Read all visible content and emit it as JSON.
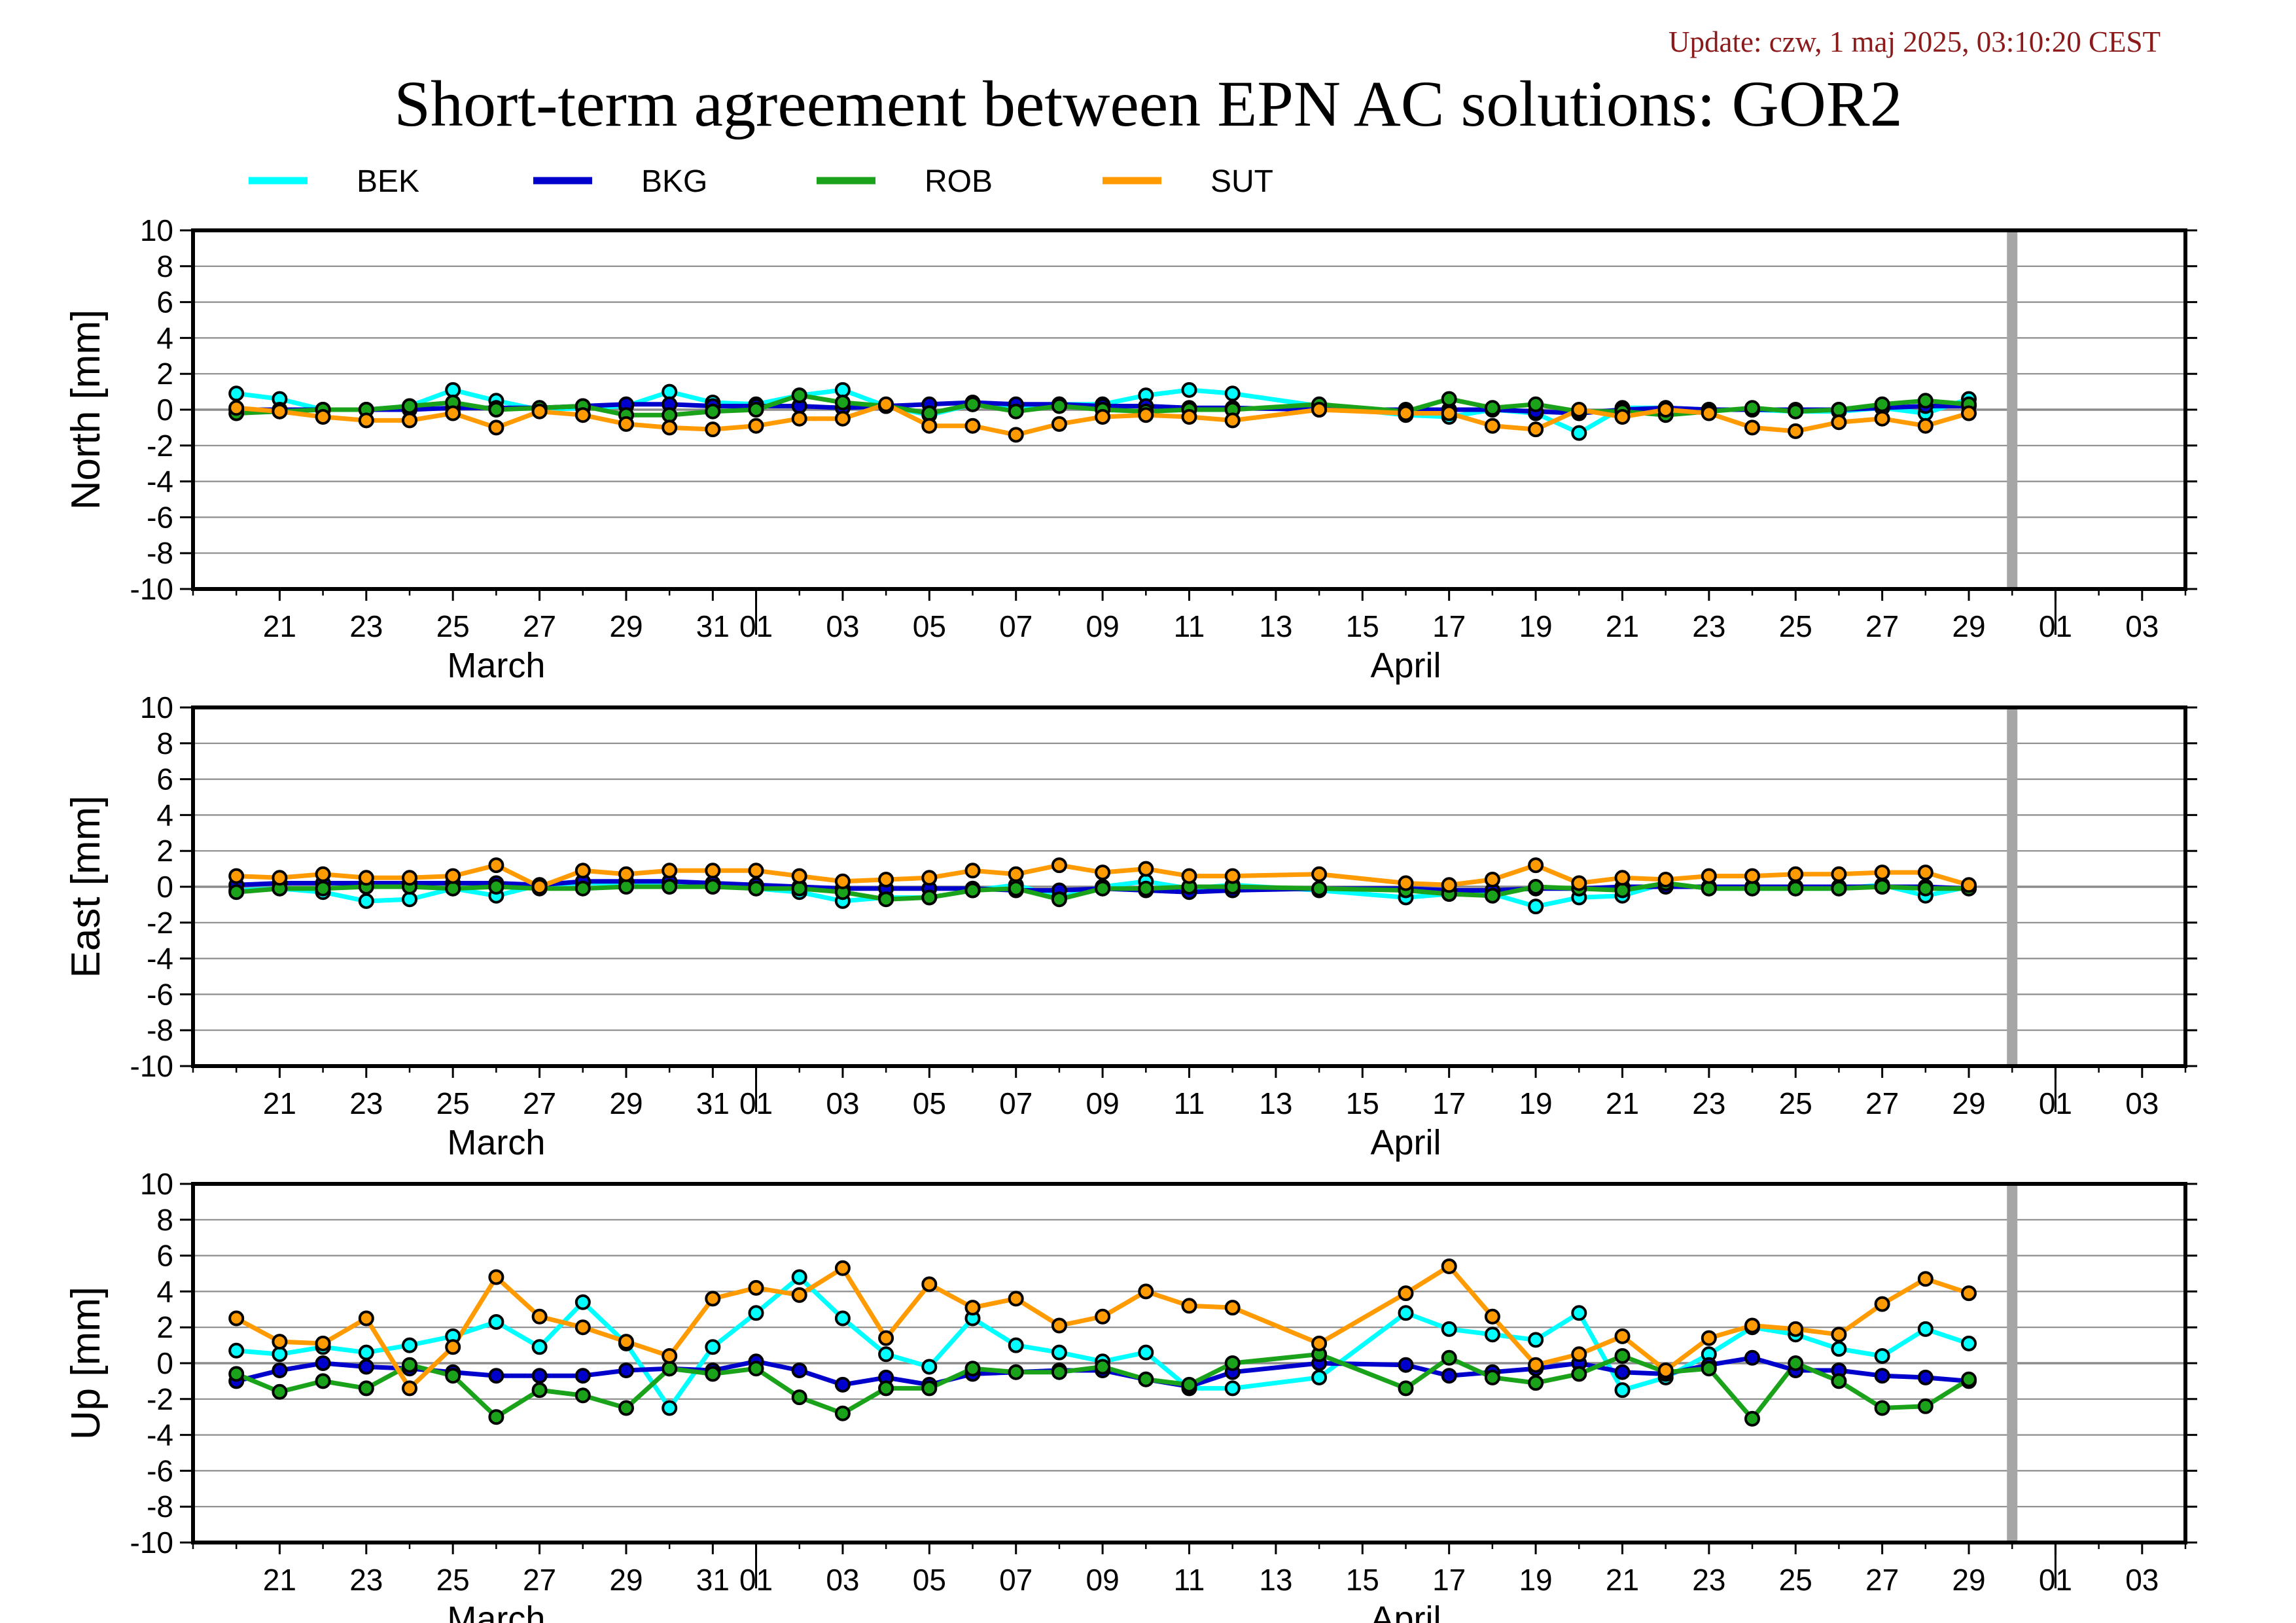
{
  "header": {
    "update": "Update: czw, 1 maj 2025, 03:10:20 CEST",
    "title": "Short-term agreement between EPN AC solutions: GOR2"
  },
  "colors": {
    "BEK": "#00ffff",
    "BKG": "#0000cd",
    "ROB": "#1aa31a",
    "SUT": "#ff9a00",
    "grid": "#8c8c8c",
    "today_marker": "#a6a6a6"
  },
  "legend": [
    {
      "series": "BEK",
      "label": "BEK"
    },
    {
      "series": "BKG",
      "label": "BKG"
    },
    {
      "series": "ROB",
      "label": "ROB"
    },
    {
      "series": "SUT",
      "label": "SUT"
    }
  ],
  "chart_data": [
    {
      "type": "line",
      "panel": "north",
      "ylabel": "North [mm]",
      "ylim": [
        -10,
        10
      ],
      "yticks": [
        10,
        8,
        6,
        4,
        2,
        0,
        -2,
        -4,
        -6,
        -8,
        -10
      ],
      "x_axis": {
        "start": "2025-03-19",
        "end": "2025-05-04",
        "tick_labels": [
          "21",
          "23",
          "25",
          "27",
          "29",
          "31",
          "01",
          "03",
          "05",
          "07",
          "09",
          "11",
          "13",
          "15",
          "17",
          "19",
          "21",
          "23",
          "25",
          "27",
          "29",
          "01",
          "03"
        ],
        "tick_dates": [
          "2025-03-21",
          "2025-03-23",
          "2025-03-25",
          "2025-03-27",
          "2025-03-29",
          "2025-03-31",
          "2025-04-01",
          "2025-04-03",
          "2025-04-05",
          "2025-04-07",
          "2025-04-09",
          "2025-04-11",
          "2025-04-13",
          "2025-04-15",
          "2025-04-17",
          "2025-04-19",
          "2025-04-21",
          "2025-04-23",
          "2025-04-25",
          "2025-04-27",
          "2025-04-29",
          "2025-05-01",
          "2025-05-03"
        ],
        "months": [
          {
            "label": "March",
            "date": "2025-03-26"
          },
          {
            "label": "April",
            "date": "2025-04-16"
          }
        ],
        "month_boundaries": [
          "2025-04-01",
          "2025-05-01"
        ],
        "today_marker": "2025-04-30"
      },
      "grid": true,
      "x": [
        "2025-03-20",
        "2025-03-21",
        "2025-03-22",
        "2025-03-23",
        "2025-03-24",
        "2025-03-25",
        "2025-03-26",
        "2025-03-27",
        "2025-03-28",
        "2025-03-29",
        "2025-03-30",
        "2025-03-31",
        "2025-04-01",
        "2025-04-02",
        "2025-04-03",
        "2025-04-04",
        "2025-04-05",
        "2025-04-06",
        "2025-04-07",
        "2025-04-08",
        "2025-04-09",
        "2025-04-10",
        "2025-04-11",
        "2025-04-12",
        "2025-04-14",
        "2025-04-16",
        "2025-04-17",
        "2025-04-18",
        "2025-04-19",
        "2025-04-20",
        "2025-04-21",
        "2025-04-22",
        "2025-04-23",
        "2025-04-24",
        "2025-04-25",
        "2025-04-26",
        "2025-04-27",
        "2025-04-28",
        "2025-04-29"
      ],
      "series": [
        {
          "name": "BEK",
          "values": [
            0.9,
            0.6,
            0.0,
            0.0,
            0.2,
            1.1,
            0.5,
            0.0,
            0.1,
            0.2,
            1.0,
            0.4,
            0.3,
            0.8,
            1.1,
            0.2,
            -0.3,
            0.3,
            0.2,
            0.3,
            0.3,
            0.8,
            1.1,
            0.9,
            0.2,
            -0.3,
            -0.4,
            0.0,
            -0.2,
            -1.3,
            0.1,
            0.1,
            0.0,
            0.0,
            -0.1,
            -0.1,
            0.1,
            -0.2,
            0.6
          ]
        },
        {
          "name": "BKG",
          "values": [
            0.0,
            0.0,
            0.0,
            0.0,
            0.0,
            0.1,
            0.1,
            0.1,
            0.2,
            0.3,
            0.3,
            0.2,
            0.2,
            0.2,
            0.1,
            0.2,
            0.3,
            0.4,
            0.3,
            0.3,
            0.2,
            0.2,
            0.1,
            0.1,
            0.0,
            0.0,
            0.0,
            0.0,
            -0.1,
            -0.2,
            0.0,
            0.1,
            0.0,
            0.0,
            0.0,
            0.0,
            0.1,
            0.2,
            0.2
          ]
        },
        {
          "name": "ROB",
          "values": [
            -0.2,
            -0.1,
            0.0,
            0.0,
            0.2,
            0.4,
            0.0,
            0.1,
            0.2,
            -0.3,
            -0.3,
            -0.1,
            0.0,
            0.8,
            0.4,
            0.2,
            -0.2,
            0.3,
            -0.1,
            0.2,
            0.0,
            -0.1,
            0.0,
            0.0,
            0.3,
            -0.1,
            0.6,
            0.1,
            0.3,
            -0.1,
            -0.1,
            -0.3,
            -0.1,
            0.1,
            -0.1,
            0.0,
            0.3,
            0.5,
            0.3
          ]
        },
        {
          "name": "SUT",
          "values": [
            0.1,
            -0.1,
            -0.4,
            -0.6,
            -0.6,
            -0.2,
            -1.0,
            -0.1,
            -0.3,
            -0.8,
            -1.0,
            -1.1,
            -0.9,
            -0.5,
            -0.5,
            0.3,
            -0.9,
            -0.9,
            -1.4,
            -0.8,
            -0.4,
            -0.3,
            -0.4,
            -0.6,
            0.0,
            -0.2,
            -0.2,
            -0.9,
            -1.1,
            0.0,
            -0.4,
            0.0,
            -0.2,
            -1.0,
            -1.2,
            -0.7,
            -0.5,
            -0.9,
            -0.2
          ]
        }
      ]
    },
    {
      "type": "line",
      "panel": "east",
      "ylabel": "East [mm]",
      "ylim": [
        -10,
        10
      ],
      "yticks": [
        10,
        8,
        6,
        4,
        2,
        0,
        -2,
        -4,
        -6,
        -8,
        -10
      ],
      "x_axis": {
        "start": "2025-03-19",
        "end": "2025-05-04",
        "tick_labels": [
          "21",
          "23",
          "25",
          "27",
          "29",
          "31",
          "01",
          "03",
          "05",
          "07",
          "09",
          "11",
          "13",
          "15",
          "17",
          "19",
          "21",
          "23",
          "25",
          "27",
          "29",
          "01",
          "03"
        ],
        "tick_dates": [
          "2025-03-21",
          "2025-03-23",
          "2025-03-25",
          "2025-03-27",
          "2025-03-29",
          "2025-03-31",
          "2025-04-01",
          "2025-04-03",
          "2025-04-05",
          "2025-04-07",
          "2025-04-09",
          "2025-04-11",
          "2025-04-13",
          "2025-04-15",
          "2025-04-17",
          "2025-04-19",
          "2025-04-21",
          "2025-04-23",
          "2025-04-25",
          "2025-04-27",
          "2025-04-29",
          "2025-05-01",
          "2025-05-03"
        ],
        "months": [
          {
            "label": "March",
            "date": "2025-03-26"
          },
          {
            "label": "April",
            "date": "2025-04-16"
          }
        ],
        "month_boundaries": [
          "2025-04-01",
          "2025-05-01"
        ],
        "today_marker": "2025-04-30"
      },
      "grid": true,
      "x": [
        "2025-03-20",
        "2025-03-21",
        "2025-03-22",
        "2025-03-23",
        "2025-03-24",
        "2025-03-25",
        "2025-03-26",
        "2025-03-27",
        "2025-03-28",
        "2025-03-29",
        "2025-03-30",
        "2025-03-31",
        "2025-04-01",
        "2025-04-02",
        "2025-04-03",
        "2025-04-04",
        "2025-04-05",
        "2025-04-06",
        "2025-04-07",
        "2025-04-08",
        "2025-04-09",
        "2025-04-10",
        "2025-04-11",
        "2025-04-12",
        "2025-04-14",
        "2025-04-16",
        "2025-04-17",
        "2025-04-18",
        "2025-04-19",
        "2025-04-20",
        "2025-04-21",
        "2025-04-22",
        "2025-04-23",
        "2025-04-24",
        "2025-04-25",
        "2025-04-26",
        "2025-04-27",
        "2025-04-28",
        "2025-04-29"
      ],
      "series": [
        {
          "name": "BEK",
          "values": [
            -0.2,
            -0.1,
            -0.3,
            -0.8,
            -0.7,
            -0.1,
            -0.5,
            0.1,
            0.2,
            0.2,
            0.2,
            0.2,
            -0.1,
            -0.3,
            -0.8,
            -0.6,
            -0.6,
            -0.2,
            0.1,
            -0.6,
            0.0,
            0.3,
            -0.1,
            0.1,
            -0.2,
            -0.6,
            -0.4,
            -0.4,
            -1.1,
            -0.6,
            -0.5,
            0.2,
            -0.1,
            -0.1,
            -0.1,
            -0.1,
            0.1,
            -0.5,
            0.0
          ]
        },
        {
          "name": "BKG",
          "values": [
            0.1,
            0.2,
            0.2,
            0.2,
            0.2,
            0.2,
            0.2,
            0.1,
            0.3,
            0.3,
            0.3,
            0.2,
            0.1,
            0.0,
            -0.1,
            -0.1,
            -0.1,
            -0.1,
            -0.2,
            -0.2,
            -0.1,
            -0.2,
            -0.3,
            -0.2,
            -0.1,
            -0.1,
            -0.2,
            -0.2,
            -0.1,
            -0.1,
            0.0,
            0.0,
            0.0,
            0.0,
            0.0,
            0.0,
            0.0,
            0.0,
            -0.1
          ]
        },
        {
          "name": "ROB",
          "values": [
            -0.3,
            -0.1,
            -0.1,
            0.0,
            0.0,
            -0.1,
            0.0,
            -0.1,
            -0.1,
            0.0,
            0.0,
            0.0,
            -0.1,
            -0.1,
            -0.3,
            -0.7,
            -0.6,
            -0.2,
            -0.1,
            -0.7,
            -0.1,
            -0.1,
            0.0,
            0.0,
            -0.1,
            -0.2,
            -0.4,
            -0.5,
            0.0,
            -0.1,
            -0.2,
            0.2,
            -0.1,
            -0.1,
            -0.1,
            -0.1,
            0.0,
            -0.1,
            -0.1
          ]
        },
        {
          "name": "SUT",
          "values": [
            0.6,
            0.5,
            0.7,
            0.5,
            0.5,
            0.6,
            1.2,
            0.0,
            0.9,
            0.7,
            0.9,
            0.9,
            0.9,
            0.6,
            0.3,
            0.4,
            0.5,
            0.9,
            0.7,
            1.2,
            0.8,
            1.0,
            0.6,
            0.6,
            0.7,
            0.2,
            0.1,
            0.4,
            1.2,
            0.2,
            0.5,
            0.4,
            0.6,
            0.6,
            0.7,
            0.7,
            0.8,
            0.8,
            0.1
          ]
        }
      ]
    },
    {
      "type": "line",
      "panel": "up",
      "ylabel": "Up [mm]",
      "ylim": [
        -10,
        10
      ],
      "yticks": [
        10,
        8,
        6,
        4,
        2,
        0,
        -2,
        -4,
        -6,
        -8,
        -10
      ],
      "x_axis": {
        "start": "2025-03-19",
        "end": "2025-05-04",
        "tick_labels": [
          "21",
          "23",
          "25",
          "27",
          "29",
          "31",
          "01",
          "03",
          "05",
          "07",
          "09",
          "11",
          "13",
          "15",
          "17",
          "19",
          "21",
          "23",
          "25",
          "27",
          "29",
          "01",
          "03"
        ],
        "tick_dates": [
          "2025-03-21",
          "2025-03-23",
          "2025-03-25",
          "2025-03-27",
          "2025-03-29",
          "2025-03-31",
          "2025-04-01",
          "2025-04-03",
          "2025-04-05",
          "2025-04-07",
          "2025-04-09",
          "2025-04-11",
          "2025-04-13",
          "2025-04-15",
          "2025-04-17",
          "2025-04-19",
          "2025-04-21",
          "2025-04-23",
          "2025-04-25",
          "2025-04-27",
          "2025-04-29",
          "2025-05-01",
          "2025-05-03"
        ],
        "months": [
          {
            "label": "March",
            "date": "2025-03-26"
          },
          {
            "label": "April",
            "date": "2025-04-16"
          }
        ],
        "month_boundaries": [
          "2025-04-01",
          "2025-05-01"
        ],
        "today_marker": "2025-04-30"
      },
      "grid": true,
      "x": [
        "2025-03-20",
        "2025-03-21",
        "2025-03-22",
        "2025-03-23",
        "2025-03-24",
        "2025-03-25",
        "2025-03-26",
        "2025-03-27",
        "2025-03-28",
        "2025-03-29",
        "2025-03-30",
        "2025-03-31",
        "2025-04-01",
        "2025-04-02",
        "2025-04-03",
        "2025-04-04",
        "2025-04-05",
        "2025-04-06",
        "2025-04-07",
        "2025-04-08",
        "2025-04-09",
        "2025-04-10",
        "2025-04-11",
        "2025-04-12",
        "2025-04-14",
        "2025-04-16",
        "2025-04-17",
        "2025-04-18",
        "2025-04-19",
        "2025-04-20",
        "2025-04-21",
        "2025-04-22",
        "2025-04-23",
        "2025-04-24",
        "2025-04-25",
        "2025-04-26",
        "2025-04-27",
        "2025-04-28",
        "2025-04-29"
      ],
      "series": [
        {
          "name": "BEK",
          "values": [
            0.7,
            0.5,
            0.9,
            0.6,
            1.0,
            1.5,
            2.3,
            0.9,
            3.4,
            1.1,
            -2.5,
            0.9,
            2.8,
            4.8,
            2.5,
            0.5,
            -0.2,
            2.5,
            1.0,
            0.6,
            0.1,
            0.6,
            -1.4,
            -1.4,
            -0.8,
            2.8,
            1.9,
            1.6,
            1.3,
            2.8,
            -1.5,
            -0.8,
            0.5,
            2.0,
            1.6,
            0.8,
            0.4,
            1.9,
            1.1
          ]
        },
        {
          "name": "BKG",
          "values": [
            -1.0,
            -0.4,
            0.0,
            -0.2,
            -0.3,
            -0.5,
            -0.7,
            -0.7,
            -0.7,
            -0.4,
            -0.3,
            -0.4,
            0.1,
            -0.4,
            -1.2,
            -0.8,
            -1.2,
            -0.6,
            -0.5,
            -0.4,
            -0.4,
            -0.9,
            -1.3,
            -0.5,
            0.0,
            -0.1,
            -0.7,
            -0.5,
            -0.3,
            0.0,
            -0.5,
            -0.6,
            -0.1,
            0.3,
            -0.4,
            -0.4,
            -0.7,
            -0.8,
            -1.0
          ]
        },
        {
          "name": "ROB",
          "values": [
            -0.6,
            -1.6,
            -1.0,
            -1.4,
            -0.1,
            -0.7,
            -3.0,
            -1.5,
            -1.8,
            -2.5,
            -0.3,
            -0.6,
            -0.3,
            -1.9,
            -2.8,
            -1.4,
            -1.4,
            -0.3,
            -0.5,
            -0.5,
            -0.2,
            -0.9,
            -1.2,
            0.0,
            0.5,
            -1.4,
            0.3,
            -0.8,
            -1.1,
            -0.6,
            0.4,
            -0.5,
            -0.3,
            -3.1,
            0.0,
            -1.0,
            -2.5,
            -2.4,
            -0.9
          ]
        },
        {
          "name": "SUT",
          "values": [
            2.5,
            1.2,
            1.1,
            2.5,
            -1.4,
            0.9,
            4.8,
            2.6,
            2.0,
            1.2,
            0.4,
            3.6,
            4.2,
            3.8,
            5.3,
            1.4,
            4.4,
            3.1,
            3.6,
            2.1,
            2.6,
            4.0,
            3.2,
            3.1,
            1.1,
            3.9,
            5.4,
            2.6,
            -0.1,
            0.5,
            1.5,
            -0.4,
            1.4,
            2.1,
            1.9,
            1.6,
            3.3,
            4.7,
            3.9
          ]
        }
      ]
    }
  ]
}
